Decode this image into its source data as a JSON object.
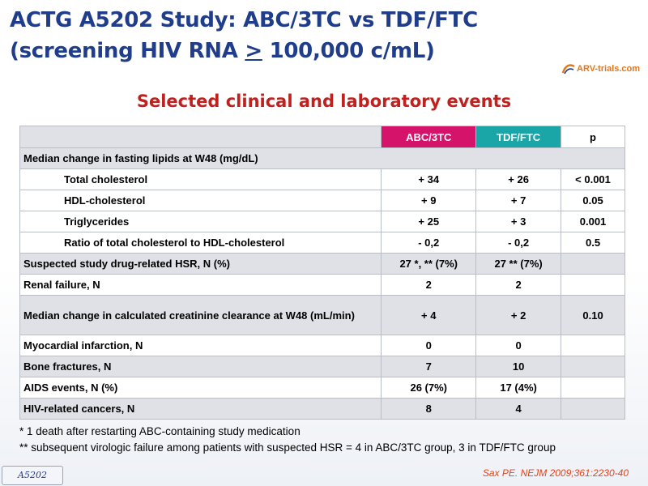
{
  "header": {
    "title_line1": "ACTG A5202 Study: ABC/3TC vs TDF/FTC",
    "title_line2_pre": "(screening HIV RNA ",
    "title_line2_symbol": ">",
    "title_line2_post": " 100,000 c/mL)",
    "logo_text": "ARV-trials.com"
  },
  "subtitle": "Selected clinical and laboratory events",
  "table": {
    "col_headers": [
      "ABC/3TC",
      "TDF/FTC",
      "p"
    ],
    "section_lipids": "Median change in fasting lipids at W48 (mg/dL)",
    "rows": [
      {
        "label": "Total cholesterol",
        "abc": "+ 34",
        "tdf": "+ 26",
        "p": "< 0.001"
      },
      {
        "label": "HDL-cholesterol",
        "abc": "+ 9",
        "tdf": "+ 7",
        "p": "0.05"
      },
      {
        "label": "Triglycerides",
        "abc": "+ 25",
        "tdf": "+ 3",
        "p": "0.001"
      },
      {
        "label": "Ratio of total cholesterol to HDL-cholesterol",
        "abc": "- 0,2",
        "tdf": "- 0,2",
        "p": "0.5"
      },
      {
        "label": "Suspected study drug-related HSR, N (%)",
        "abc": "27 *, ** (7%)",
        "tdf": "27 ** (7%)",
        "p": ""
      },
      {
        "label": "Renal failure, N",
        "abc": "2",
        "tdf": "2",
        "p": ""
      },
      {
        "label": "Median change in calculated creatinine clearance at W48 (mL/min)",
        "abc": "+ 4",
        "tdf": "+ 2",
        "p": "0.10"
      },
      {
        "label": "Myocardial infarction, N",
        "abc": "0",
        "tdf": "0",
        "p": ""
      },
      {
        "label": "Bone fractures, N",
        "abc": "7",
        "tdf": "10",
        "p": ""
      },
      {
        "label": "AIDS events, N (%)",
        "abc": "26 (7%)",
        "tdf": "17 (4%)",
        "p": ""
      },
      {
        "label": "HIV-related cancers, N",
        "abc": "8",
        "tdf": "4",
        "p": ""
      }
    ]
  },
  "footnotes": [
    "* 1 death after restarting ABC-containing study medication",
    "** subsequent virologic failure among patients with suspected HSR = 4 in ABC/3TC group, 3 in TDF/FTC group"
  ],
  "reference": "Sax PE. NEJM 2009;361:2230-40",
  "study_tag": "A5202",
  "colors": {
    "title": "#1f3d8a",
    "subtitle": "#c0201e",
    "abc_header": "#d6136b",
    "tdf_header": "#1aa6a6",
    "reference": "#e2451b"
  }
}
